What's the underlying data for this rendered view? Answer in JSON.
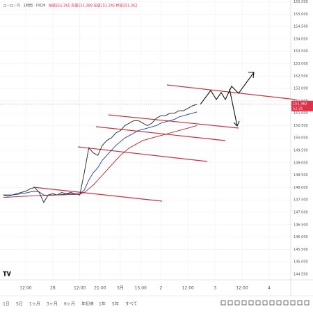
{
  "header": {
    "symbol": "ユーロ / 円 · 1時間 · FXCM",
    "ohlc": "始値151.365 高値151.389 安値151.345 終値151.362"
  },
  "chart_data": {
    "type": "line",
    "x": [
      2,
      4,
      6,
      8,
      10,
      12,
      14,
      16,
      18,
      20,
      22,
      24,
      26,
      28,
      30,
      32,
      34,
      36,
      38,
      40,
      42,
      44,
      46,
      48,
      50,
      52,
      54,
      56,
      58,
      60,
      62,
      64,
      66,
      68,
      70,
      72,
      74,
      76,
      78,
      80,
      82,
      84,
      86,
      88
    ],
    "series": [
      {
        "color": "#333333",
        "values": [
          147.7,
          147.65,
          147.7,
          147.75,
          147.8,
          147.85,
          147.95,
          148.0,
          147.8,
          147.4,
          147.7,
          147.75,
          147.7,
          147.8,
          147.75,
          147.8,
          147.75,
          147.7,
          148.6,
          149.6,
          149.4,
          149.3,
          149.7,
          149.9,
          150.0,
          150.2,
          150.3,
          150.5,
          150.6,
          150.7,
          150.7,
          150.6,
          150.5,
          150.6,
          150.8,
          150.9,
          150.9,
          151.0,
          151.0,
          151.1,
          151.1,
          151.2,
          151.3,
          151.36
        ]
      },
      {
        "color": "#1f3f99",
        "values": [
          147.7,
          147.7,
          147.7,
          147.72,
          147.75,
          147.78,
          147.82,
          147.85,
          147.82,
          147.7,
          147.68,
          147.7,
          147.7,
          147.72,
          147.74,
          147.75,
          147.75,
          147.74,
          147.9,
          148.3,
          148.6,
          148.8,
          149.1,
          149.3,
          149.5,
          149.7,
          149.85,
          150.0,
          150.1,
          150.2,
          150.3,
          150.35,
          150.4,
          150.45,
          150.5,
          150.6,
          150.65,
          150.7,
          150.75,
          150.85,
          150.9,
          150.95,
          151.0,
          151.05
        ]
      },
      {
        "color": "#b22222",
        "values": [
          147.6,
          147.61,
          147.62,
          147.63,
          147.64,
          147.65,
          147.66,
          147.67,
          147.68,
          147.68,
          147.68,
          147.69,
          147.7,
          147.7,
          147.71,
          147.72,
          147.72,
          147.73,
          147.8,
          147.95,
          148.1,
          148.3,
          148.5,
          148.7,
          148.9,
          149.1,
          149.3,
          149.45,
          149.6,
          149.7,
          149.8,
          149.9,
          149.95,
          150.0,
          150.05,
          150.1,
          150.15,
          150.2,
          150.25,
          150.3,
          150.35,
          150.4,
          150.45,
          150.5
        ]
      }
    ],
    "xlim": [
      0.6,
      129.6
    ],
    "xticks": [
      {
        "value": 12,
        "label": "12:00"
      },
      {
        "value": 24,
        "label": "28"
      },
      {
        "value": 36,
        "label": "12:00"
      },
      {
        "value": 45,
        "label": "21:00"
      },
      {
        "value": 54,
        "label": "5月"
      },
      {
        "value": 63,
        "label": "15:00"
      },
      {
        "value": 72,
        "label": "2"
      },
      {
        "value": 84,
        "label": "12:00"
      },
      {
        "value": 96,
        "label": "3"
      },
      {
        "value": 108,
        "label": "12:00"
      },
      {
        "value": 120,
        "label": "4"
      }
    ],
    "ylim": [
      144.275,
      155.57
    ],
    "yticks": [
      {
        "value": 144.5,
        "label": "144.500"
      },
      {
        "value": 145,
        "label": "145.000"
      },
      {
        "value": 145.5,
        "label": "145.500"
      },
      {
        "value": 146,
        "label": "146.000"
      },
      {
        "value": 146.5,
        "label": "146.500"
      },
      {
        "value": 147,
        "label": "147.000"
      },
      {
        "value": 147.5,
        "label": "147.500"
      },
      {
        "value": 148,
        "label": "148.000"
      },
      {
        "value": 148.5,
        "label": "148.500"
      },
      {
        "value": 149,
        "label": "149.000"
      },
      {
        "value": 149.5,
        "label": "149.500"
      },
      {
        "value": 150,
        "label": "150.000"
      },
      {
        "value": 150.5,
        "label": "150.500"
      },
      {
        "value": 151,
        "label": "151.000"
      },
      {
        "value": 151.5,
        "label": "151.500"
      },
      {
        "value": 152,
        "label": "152.000"
      },
      {
        "value": 152.5,
        "label": "152.500"
      },
      {
        "value": 153,
        "label": "153.000"
      },
      {
        "value": 153.5,
        "label": "153.500"
      },
      {
        "value": 154,
        "label": "154.000"
      },
      {
        "value": 154.5,
        "label": "154.500"
      },
      {
        "value": 155,
        "label": "155.000"
      },
      {
        "value": 155.5,
        "label": "155.500"
      }
    ],
    "grid": true,
    "last_price": {
      "value": 151.362,
      "label": "151.362",
      "countdown": "52:31",
      "color": "#e0304a"
    }
  },
  "toolbar": {
    "ranges": [
      "1日",
      "5日",
      "1ヶ月",
      "3ヶ月",
      "6ヶ月",
      "年初来",
      "1年",
      "5年",
      "すべて"
    ]
  }
}
